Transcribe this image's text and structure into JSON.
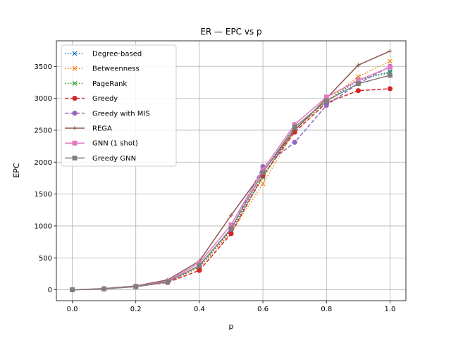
{
  "chart_data": {
    "type": "line",
    "title": "ER — EPC vs p",
    "xlabel": "p",
    "ylabel": "EPC",
    "xlim": [
      -0.05,
      1.05
    ],
    "ylim": [
      -170,
      3900
    ],
    "xticks": [
      0.0,
      0.2,
      0.4,
      0.6,
      0.8,
      1.0
    ],
    "xtick_labels": [
      "0.0",
      "0.2",
      "0.4",
      "0.6",
      "0.8",
      "1.0"
    ],
    "yticks": [
      0,
      500,
      1000,
      1500,
      2000,
      2500,
      3000,
      3500
    ],
    "ytick_labels": [
      "0",
      "500",
      "1000",
      "1500",
      "2000",
      "2500",
      "3000",
      "3500"
    ],
    "grid": true,
    "legend_position": "top-left",
    "x": [
      0.0,
      0.1,
      0.2,
      0.3,
      0.4,
      0.5,
      0.6,
      0.7,
      0.8,
      0.9,
      1.0
    ],
    "series": [
      {
        "name": "Degree-based",
        "color": "#1f77b4",
        "linestyle": "dotted",
        "marker": "x",
        "values": [
          0,
          15,
          50,
          120,
          360,
          940,
          1780,
          2520,
          2950,
          3280,
          3420
        ]
      },
      {
        "name": "Betweenness",
        "color": "#ff7f0e",
        "linestyle": "dotted",
        "marker": "x",
        "values": [
          0,
          15,
          50,
          120,
          350,
          900,
          1660,
          2500,
          2960,
          3340,
          3580
        ]
      },
      {
        "name": "PageRank",
        "color": "#2ca02c",
        "linestyle": "dotted",
        "marker": "x",
        "values": [
          0,
          15,
          50,
          120,
          360,
          930,
          1760,
          2510,
          2950,
          3300,
          3400
        ]
      },
      {
        "name": "Greedy",
        "color": "#d62728",
        "linestyle": "dashed",
        "marker": "circle",
        "values": [
          0,
          15,
          50,
          115,
          305,
          880,
          1790,
          2470,
          2930,
          3120,
          3150
        ]
      },
      {
        "name": "Greedy with MIS",
        "color": "#9467bd",
        "linestyle": "dashed",
        "marker": "circle",
        "values": [
          0,
          15,
          50,
          120,
          380,
          950,
          1930,
          2310,
          2890,
          3230,
          3500
        ]
      },
      {
        "name": "REGA",
        "color": "#8c564b",
        "linestyle": "solid",
        "marker": "plus",
        "values": [
          0,
          20,
          60,
          155,
          450,
          1170,
          1850,
          2500,
          3000,
          3520,
          3740
        ]
      },
      {
        "name": "GNN (1 shot)",
        "color": "#e377c2",
        "linestyle": "solid",
        "marker": "square",
        "values": [
          0,
          15,
          55,
          135,
          420,
          1020,
          1880,
          2590,
          3020,
          3280,
          3490
        ]
      },
      {
        "name": "Greedy GNN",
        "color": "#7f7f7f",
        "linestyle": "solid",
        "marker": "square",
        "values": [
          0,
          15,
          50,
          125,
          380,
          960,
          1840,
          2550,
          2960,
          3230,
          3360
        ]
      }
    ]
  }
}
